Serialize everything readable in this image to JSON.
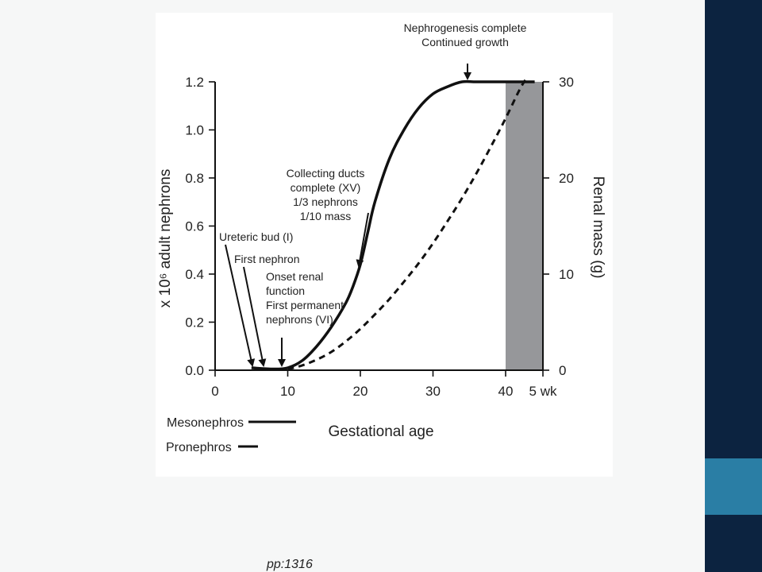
{
  "colors": {
    "sidebar": "#0c2340",
    "sidebar_accent": "#2a7ea5",
    "term_band": "#96979a",
    "ink": "#111111"
  },
  "page_ref": "pp:1316",
  "chart_data": {
    "type": "line",
    "xlabel": "Gestational age",
    "ylabel_left": "x 10⁶ adult nephrons",
    "ylabel_right": "Renal mass (g)",
    "x_ticks": [
      {
        "value": 0,
        "label": "0"
      },
      {
        "value": 10,
        "label": "10"
      },
      {
        "value": 20,
        "label": "20"
      },
      {
        "value": 30,
        "label": "30"
      },
      {
        "value": 40,
        "label": "40"
      },
      {
        "value": 45,
        "label": "5 wk"
      }
    ],
    "xlim": [
      0,
      45
    ],
    "ylim_left": [
      0,
      1.2
    ],
    "y_ticks_left": [
      "0.0",
      "0.2",
      "0.4",
      "0.6",
      "0.8",
      "1.0",
      "1.2"
    ],
    "ylim_right": [
      0,
      30
    ],
    "y_ticks_right": [
      "0",
      "10",
      "20",
      "30"
    ],
    "shaded_region": {
      "x": [
        40,
        45
      ]
    },
    "series": [
      {
        "style": "solid",
        "axis": "left",
        "x": [
          5,
          8,
          10,
          12,
          14,
          16,
          18,
          19,
          20,
          21,
          22,
          24,
          26,
          28,
          30,
          32,
          34,
          36,
          40,
          44
        ],
        "y": [
          0.01,
          0.005,
          0.01,
          0.04,
          0.1,
          0.18,
          0.28,
          0.35,
          0.44,
          0.57,
          0.7,
          0.88,
          1.0,
          1.09,
          1.15,
          1.18,
          1.2,
          1.2,
          1.2,
          1.2
        ]
      },
      {
        "style": "dashed",
        "axis": "right",
        "x": [
          10,
          12,
          14,
          16,
          18,
          20,
          22,
          24,
          26,
          28,
          30,
          32,
          34,
          36,
          38,
          40,
          42,
          43
        ],
        "y": [
          0.1,
          0.5,
          1.1,
          1.9,
          3.0,
          4.3,
          5.8,
          7.4,
          9.2,
          11.1,
          13.2,
          15.5,
          17.9,
          20.5,
          23.3,
          26.2,
          29.3,
          30.5
        ]
      }
    ],
    "stage_bars": [
      {
        "label": "Mesonephros",
        "x": [
          5,
          11
        ]
      },
      {
        "label": "Pronephros",
        "x": [
          3,
          6
        ]
      }
    ],
    "annotations": [
      {
        "lines": [
          "Nephrogenesis complete",
          "Continued growth"
        ],
        "x": 35
      },
      {
        "lines": [
          "Collecting ducts",
          "complete (XV)",
          "1/3 nephrons",
          "1/10 mass"
        ],
        "x": 20
      },
      {
        "lines": [
          "Ureteric bud (I)"
        ],
        "x": 5
      },
      {
        "lines": [
          "First nephron"
        ],
        "x": 6.5
      },
      {
        "lines": [
          "Onset renal",
          "function",
          "First permanent",
          "nephrons (VI)"
        ],
        "x": 9
      }
    ]
  }
}
